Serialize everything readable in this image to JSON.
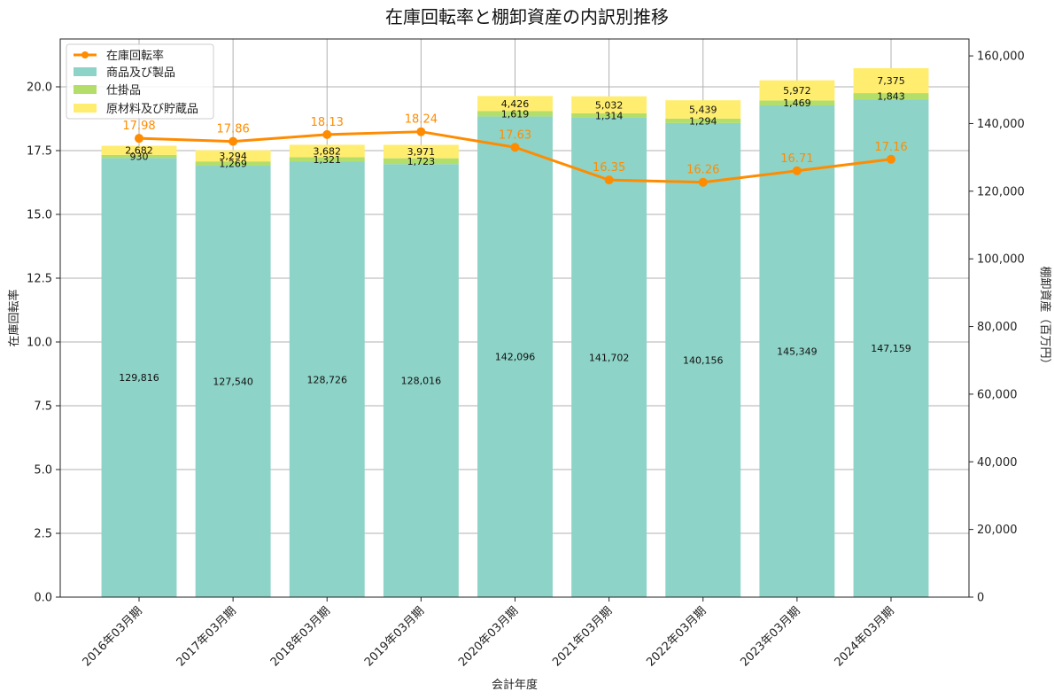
{
  "chart_data": {
    "type": "bar",
    "title": "在庫回転率と棚卸資産の内訳別推移",
    "xlabel": "会計年度",
    "ylabel_left": "在庫回転率",
    "ylabel_right": "棚卸資産（百万円）",
    "categories": [
      "2016年03月期",
      "2017年03月期",
      "2018年03月期",
      "2019年03月期",
      "2020年03月期",
      "2021年03月期",
      "2022年03月期",
      "2023年03月期",
      "2024年03月期"
    ],
    "series": [
      {
        "name": "商品及び製品",
        "axis": "right",
        "kind": "bar",
        "color": "#8dd3c7",
        "values": [
          129816,
          127540,
          128726,
          128016,
          142096,
          141702,
          140156,
          145349,
          147159
        ],
        "labels": [
          "129,816",
          "127,540",
          "128,726",
          "128,016",
          "142,096",
          "141,702",
          "140,156",
          "145,349",
          "147,159"
        ]
      },
      {
        "name": "仕掛品",
        "axis": "right",
        "kind": "bar",
        "color": "#b3de69",
        "values": [
          930,
          1269,
          1321,
          1723,
          1619,
          1314,
          1294,
          1469,
          1843
        ],
        "labels": [
          "930",
          "1,269",
          "1,321",
          "1,723",
          "1,619",
          "1,314",
          "1,294",
          "1,469",
          "1,843"
        ]
      },
      {
        "name": "原材料及び貯蔵品",
        "axis": "right",
        "kind": "bar",
        "color": "#ffed6f",
        "values": [
          2682,
          3294,
          3682,
          3971,
          4426,
          5032,
          5439,
          5972,
          7375
        ],
        "labels": [
          "2,682",
          "3,294",
          "3,682",
          "3,971",
          "4,426",
          "5,032",
          "5,439",
          "5,972",
          "7,375"
        ]
      },
      {
        "name": "在庫回転率",
        "axis": "left",
        "kind": "line",
        "color": "#ff8c00",
        "values": [
          17.98,
          17.86,
          18.13,
          18.24,
          17.63,
          16.35,
          16.26,
          16.71,
          17.16
        ],
        "labels": [
          "17.98",
          "17.86",
          "18.13",
          "18.24",
          "17.63",
          "16.35",
          "16.26",
          "16.71",
          "17.16"
        ]
      }
    ],
    "ylim_left": [
      0,
      21.875
    ],
    "yticks_left": [
      "0.0",
      "2.5",
      "5.0",
      "7.5",
      "10.0",
      "12.5",
      "15.0",
      "17.5",
      "20.0"
    ],
    "ylim_right": [
      0,
      165000
    ],
    "yticks_right": [
      "0",
      "20,000",
      "40,000",
      "60,000",
      "80,000",
      "100,000",
      "120,000",
      "140,000",
      "160,000"
    ],
    "grid": true,
    "legend": "top-left"
  }
}
